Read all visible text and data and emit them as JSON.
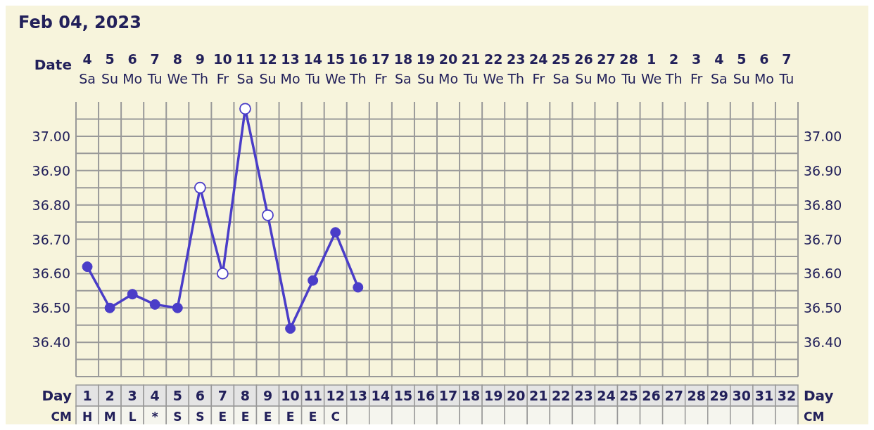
{
  "chart_data": {
    "type": "line",
    "title": "Feb 04, 2023",
    "xlabel": "Day",
    "x2label": "Date",
    "x": [
      1,
      2,
      3,
      4,
      5,
      6,
      7,
      8,
      9,
      10,
      11,
      12,
      13
    ],
    "xlim": [
      0.5,
      32.5
    ],
    "xticks": [
      1,
      2,
      3,
      4,
      5,
      6,
      7,
      8,
      9,
      10,
      11,
      12,
      13,
      14,
      15,
      16,
      17,
      18,
      19,
      20,
      21,
      22,
      23,
      24,
      25,
      26,
      27,
      28,
      29,
      30,
      31,
      32
    ],
    "x2lim": [
      "2023-02-03T12:00",
      "2023-03-07T12:00"
    ],
    "x2ticks": [
      {
        "value": "2023-02-04",
        "label": "4\nSa"
      },
      {
        "value": "2023-02-05",
        "label": "5\nSu"
      },
      {
        "value": "2023-02-06",
        "label": "6\nMo"
      },
      {
        "value": "2023-02-07",
        "label": "7\nTu"
      },
      {
        "value": "2023-02-08",
        "label": "8\nWe"
      },
      {
        "value": "2023-02-09",
        "label": "9\nTh"
      },
      {
        "value": "2023-02-10",
        "label": "10\nFr"
      },
      {
        "value": "2023-02-11",
        "label": "11\nSa"
      },
      {
        "value": "2023-02-12",
        "label": "12\nSu"
      },
      {
        "value": "2023-02-13",
        "label": "13\nMo"
      },
      {
        "value": "2023-02-14",
        "label": "14\nTu"
      },
      {
        "value": "2023-02-15",
        "label": "15\nWe"
      },
      {
        "value": "2023-02-16",
        "label": "16\nTh"
      },
      {
        "value": "2023-02-17",
        "label": "17\nFr"
      },
      {
        "value": "2023-02-18",
        "label": "18\nSa"
      },
      {
        "value": "2023-02-19",
        "label": "19\nSu"
      },
      {
        "value": "2023-02-20",
        "label": "20\nMo"
      },
      {
        "value": "2023-02-21",
        "label": "21\nTu"
      },
      {
        "value": "2023-02-22",
        "label": "22\nWe"
      },
      {
        "value": "2023-02-23",
        "label": "23\nTh"
      },
      {
        "value": "2023-02-24",
        "label": "24\nFr"
      },
      {
        "value": "2023-02-25",
        "label": "25\nSa"
      },
      {
        "value": "2023-02-26",
        "label": "26\nSu"
      },
      {
        "value": "2023-02-27",
        "label": "27\nMo"
      },
      {
        "value": "2023-02-28",
        "label": "28\nTu"
      },
      {
        "value": "2023-03-01",
        "label": "1\nWe"
      },
      {
        "value": "2023-03-02",
        "label": "2\nTh"
      },
      {
        "value": "2023-03-03",
        "label": "3\nFr"
      },
      {
        "value": "2023-03-04",
        "label": "4\nSa"
      },
      {
        "value": "2023-03-05",
        "label": "5\nSu"
      },
      {
        "value": "2023-03-06",
        "label": "6\nMo"
      },
      {
        "value": "2023-03-07",
        "label": "7\nTu"
      }
    ],
    "ylim": [
      36.3,
      37.1
    ],
    "yticks": [
      {
        "value": 36.35,
        "label": null
      },
      {
        "value": 36.4,
        "label": "36.40"
      },
      {
        "value": 36.45,
        "label": null
      },
      {
        "value": 36.5,
        "label": "36.50"
      },
      {
        "value": 36.55,
        "label": null
      },
      {
        "value": 36.6,
        "label": "36.60"
      },
      {
        "value": 36.65,
        "label": null
      },
      {
        "value": 36.7,
        "label": "36.70"
      },
      {
        "value": 36.75,
        "label": null
      },
      {
        "value": 36.8,
        "label": "36.80"
      },
      {
        "value": 36.85,
        "label": null
      },
      {
        "value": 36.9,
        "label": "36.90"
      },
      {
        "value": 36.95,
        "label": null
      },
      {
        "value": 37.0,
        "label": "37.00"
      },
      {
        "value": 37.05,
        "label": null
      }
    ],
    "y2lim": [
      36.3,
      37.1
    ],
    "y2ticks": [
      {
        "value": 36.35,
        "label": null
      },
      {
        "value": 36.4,
        "label": "36.40"
      },
      {
        "value": 36.45,
        "label": null
      },
      {
        "value": 36.5,
        "label": "36.50"
      },
      {
        "value": 36.55,
        "label": null
      },
      {
        "value": 36.6,
        "label": "36.60"
      },
      {
        "value": 36.65,
        "label": null
      },
      {
        "value": 36.7,
        "label": "36.70"
      },
      {
        "value": 36.75,
        "label": null
      },
      {
        "value": 36.8,
        "label": "36.80"
      },
      {
        "value": 36.85,
        "label": null
      },
      {
        "value": 36.9,
        "label": "36.90"
      },
      {
        "value": 36.95,
        "label": null
      },
      {
        "value": 37.0,
        "label": "37.00"
      },
      {
        "value": 37.05,
        "label": null
      }
    ],
    "series": [
      {
        "color": "#4a3dc8",
        "values": [
          36.62,
          36.5,
          36.54,
          36.51,
          36.5,
          36.85,
          36.6,
          37.08,
          36.77,
          36.44,
          36.58,
          36.72,
          36.56
        ]
      },
      {
        "type": "scatter",
        "color": "#ffffff",
        "values": [
          null,
          null,
          null,
          null,
          null,
          36.85,
          36.6,
          37.08,
          36.77,
          null,
          null,
          null,
          null
        ]
      }
    ],
    "marker": "circle",
    "line_style": "solid",
    "grid": true,
    "legend": false,
    "annotations": [
      "CM",
      "H",
      "M",
      "L",
      "*",
      "S",
      "S",
      "E",
      "E",
      "E",
      "E",
      "E",
      "C"
    ]
  }
}
